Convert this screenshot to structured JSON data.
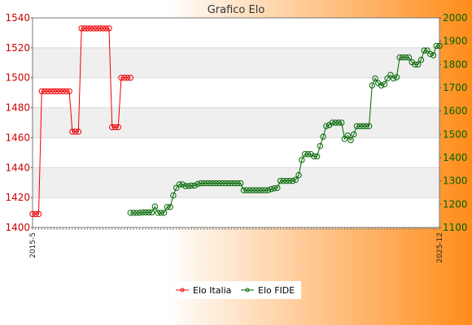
{
  "chart_data": {
    "type": "line",
    "title": "Grafico Elo",
    "xlabel": "",
    "ylabel": "",
    "ylim_left": [
      1400,
      1540
    ],
    "ylim_right": [
      1100,
      2000
    ],
    "yticks_left": [
      1400,
      1420,
      1440,
      1460,
      1480,
      1500,
      1520,
      1540
    ],
    "yticks_right": [
      1100,
      1200,
      1300,
      1400,
      1500,
      1600,
      1700,
      1800,
      1900,
      2000
    ],
    "x_first_label": "2015-5",
    "x_last_label": "2025-12",
    "grid": true,
    "legend_position": "bottom",
    "colors": {
      "elo_italia": "#ee0000",
      "elo_fide": "#006600",
      "bg_left": "#ffffff",
      "bg_right": "#ff8c1a"
    },
    "series": [
      {
        "name": "Elo Italia",
        "axis": "left",
        "values": [
          1409,
          1409,
          1409,
          1491,
          1491,
          1491,
          1491,
          1491,
          1491,
          1491,
          1491,
          1491,
          1491,
          1464,
          1464,
          1464,
          1533,
          1533,
          1533,
          1533,
          1533,
          1533,
          1533,
          1533,
          1533,
          1533,
          1467,
          1467,
          1467,
          1500,
          1500,
          1500,
          1500
        ]
      },
      {
        "name": "Elo FIDE",
        "axis": "right",
        "start_index": 32,
        "values": [
          1163,
          1163,
          1163,
          1163,
          1165,
          1165,
          1165,
          1165,
          1190,
          1163,
          1163,
          1163,
          1188,
          1188,
          1238,
          1270,
          1285,
          1285,
          1278,
          1278,
          1280,
          1280,
          1287,
          1290,
          1290,
          1290,
          1290,
          1290,
          1290,
          1290,
          1290,
          1290,
          1290,
          1290,
          1290,
          1290,
          1290,
          1260,
          1260,
          1260,
          1260,
          1260,
          1260,
          1260,
          1260,
          1260,
          1265,
          1268,
          1270,
          1300,
          1300,
          1300,
          1300,
          1300,
          1305,
          1325,
          1390,
          1415,
          1415,
          1415,
          1405,
          1405,
          1450,
          1490,
          1535,
          1540,
          1550,
          1550,
          1550,
          1550,
          1480,
          1495,
          1475,
          1500,
          1535,
          1535,
          1535,
          1535,
          1535,
          1710,
          1740,
          1720,
          1710,
          1715,
          1740,
          1755,
          1740,
          1745,
          1830,
          1830,
          1830,
          1830,
          1810,
          1800,
          1800,
          1820,
          1860,
          1860,
          1845,
          1840,
          1880,
          1880
        ]
      }
    ]
  }
}
